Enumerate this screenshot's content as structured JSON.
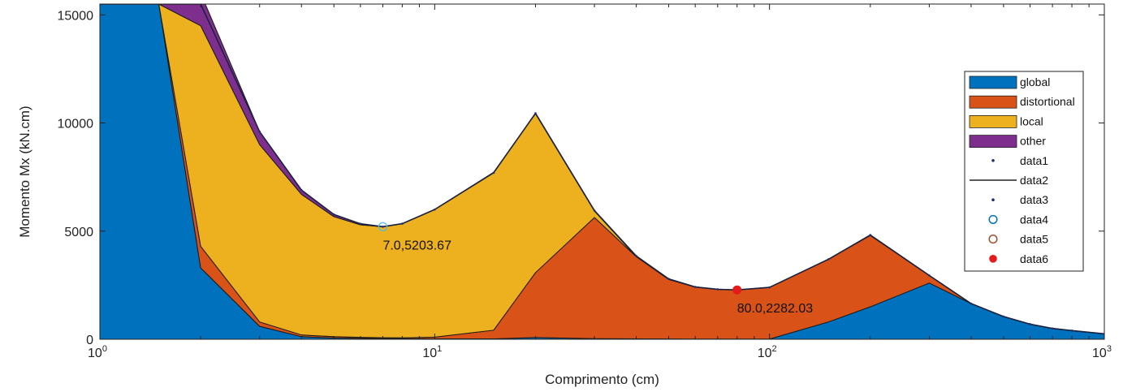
{
  "chart_data": {
    "type": "area",
    "xlabel": "Comprimento (cm)",
    "ylabel": "Momento Mx (kN.cm)",
    "xscale": "log",
    "xlim": [
      1,
      1000
    ],
    "ylim": [
      0,
      15500
    ],
    "xticks": [
      {
        "value": 1,
        "base": "10",
        "exp": "0"
      },
      {
        "value": 10,
        "base": "10",
        "exp": "1"
      },
      {
        "value": 100,
        "base": "10",
        "exp": "2"
      },
      {
        "value": 1000,
        "base": "10",
        "exp": "3"
      }
    ],
    "yticks": [
      {
        "value": 0,
        "label": "0"
      },
      {
        "value": 5000,
        "label": "5000"
      },
      {
        "value": 10000,
        "label": "10000"
      },
      {
        "value": 15000,
        "label": "15000"
      }
    ],
    "stacked": true,
    "x": [
      1,
      1.3,
      1.5,
      2,
      3,
      4,
      5,
      6,
      7,
      8,
      10,
      15,
      20,
      30,
      40,
      50,
      60,
      70,
      80,
      100,
      150,
      200,
      300,
      400,
      500,
      600,
      700,
      800,
      1000
    ],
    "series": [
      {
        "name": "global",
        "color": "#0072BD",
        "values": [
          15500,
          15500,
          15500,
          3300,
          600,
          120,
          60,
          40,
          30,
          25,
          20,
          20,
          80,
          30,
          20,
          15,
          10,
          10,
          10,
          10,
          800,
          1500,
          2600,
          1650,
          1050,
          700,
          500,
          400,
          250
        ]
      },
      {
        "name": "distortional",
        "color": "#D95319",
        "values": [
          0,
          0,
          0,
          1000,
          200,
          80,
          60,
          50,
          40,
          40,
          80,
          400,
          3000,
          5600,
          3800,
          2750,
          2400,
          2300,
          2272,
          2390,
          2900,
          3300,
          350,
          0,
          0,
          0,
          0,
          0,
          0
        ]
      },
      {
        "name": "local",
        "color": "#EDB120",
        "values": [
          0,
          0,
          0,
          10200,
          8200,
          6500,
          5550,
          5200,
          5134,
          5280,
          5900,
          7300,
          7350,
          300,
          0,
          0,
          0,
          0,
          0,
          0,
          0,
          0,
          0,
          0,
          0,
          0,
          0,
          0,
          0
        ]
      },
      {
        "name": "other",
        "color": "#7E2F8E",
        "values": [
          0,
          0,
          0,
          1500,
          600,
          200,
          100,
          50,
          0,
          0,
          0,
          0,
          0,
          0,
          0,
          0,
          0,
          0,
          0,
          0,
          0,
          0,
          0,
          0,
          0,
          0,
          0,
          0,
          0
        ]
      }
    ],
    "line_data": {
      "x": [
        1,
        2,
        3,
        4,
        5,
        6,
        7,
        8,
        10,
        15,
        20,
        30,
        40,
        50,
        60,
        70,
        80,
        100,
        150,
        200,
        300,
        400,
        500,
        600,
        700,
        800,
        1000
      ],
      "y": [
        15500,
        15500,
        9600,
        6900,
        5770,
        5340,
        5204,
        5345,
        6000,
        7700,
        10450,
        5950,
        3850,
        2790,
        2420,
        2310,
        2282,
        2400,
        3700,
        4820,
        2950,
        1650,
        1050,
        700,
        500,
        400,
        250
      ]
    },
    "markers": [
      {
        "name": "data4",
        "x": 7.0,
        "y": 5203.67,
        "label": "7.0,5203.67",
        "style": "hollow-circle",
        "color": "#4DBEEE"
      },
      {
        "name": "data6",
        "x": 80.0,
        "y": 2282.03,
        "label": "80.0,2282.03",
        "style": "filled-circle",
        "color": "#E41A1C"
      }
    ],
    "legend": {
      "placement": "right",
      "entries": [
        {
          "label": "global",
          "kind": "patch",
          "color": "#0072BD"
        },
        {
          "label": "distortional",
          "kind": "patch",
          "color": "#D95319"
        },
        {
          "label": "local",
          "kind": "patch",
          "color": "#EDB120"
        },
        {
          "label": "other",
          "kind": "patch",
          "color": "#7E2F8E"
        },
        {
          "label": "data1",
          "kind": "dot",
          "color": "#1f2f6f"
        },
        {
          "label": "data2",
          "kind": "line",
          "color": "#222222"
        },
        {
          "label": "data3",
          "kind": "dot",
          "color": "#1f2f6f"
        },
        {
          "label": "data4",
          "kind": "hollow-circle",
          "color": "#0072BD"
        },
        {
          "label": "data5",
          "kind": "hollow-circle",
          "color": "#A2522E"
        },
        {
          "label": "data6",
          "kind": "filled-circle",
          "color": "#E41A1C"
        }
      ]
    },
    "grid": false
  }
}
